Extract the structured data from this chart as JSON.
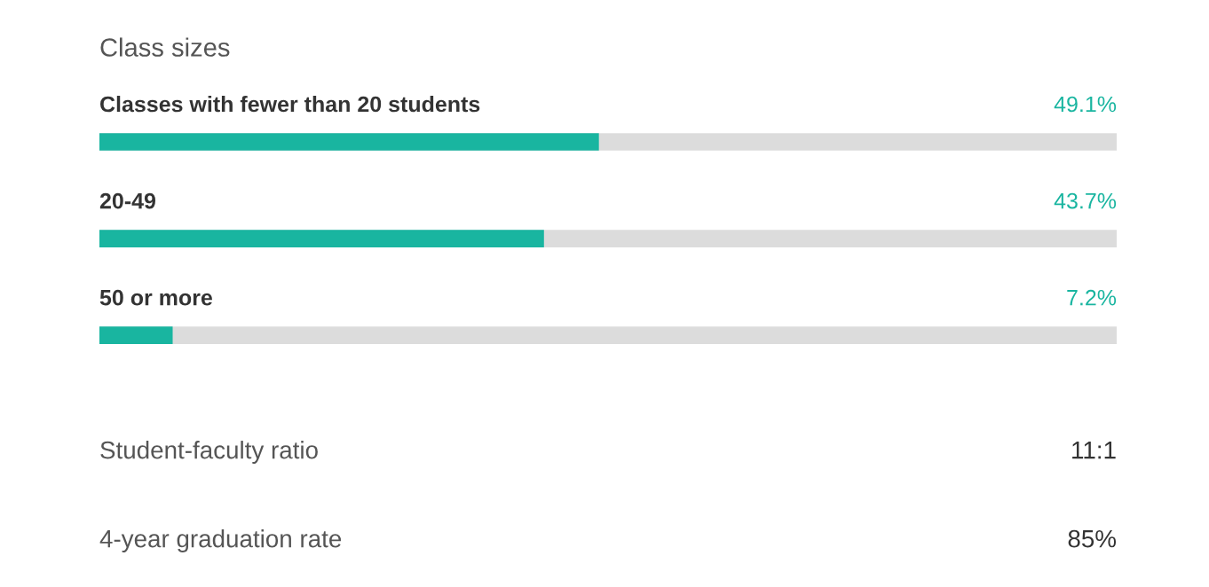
{
  "chart_data": [
    {
      "type": "bar",
      "title": "Class sizes",
      "orientation": "horizontal",
      "categories": [
        "Classes with fewer than 20 students",
        "20-49",
        "50 or more"
      ],
      "series": [
        {
          "color": "#19b5a0",
          "values": [
            49.1,
            43.7,
            7.2
          ],
          "value_labels": [
            "49.1%",
            "43.7%",
            "7.2%"
          ]
        }
      ]
    },
    {
      "type": "other",
      "annotations": [
        "Student-faculty ratio",
        "11:1",
        "4-year graduation rate",
        "85%"
      ]
    }
  ]
}
